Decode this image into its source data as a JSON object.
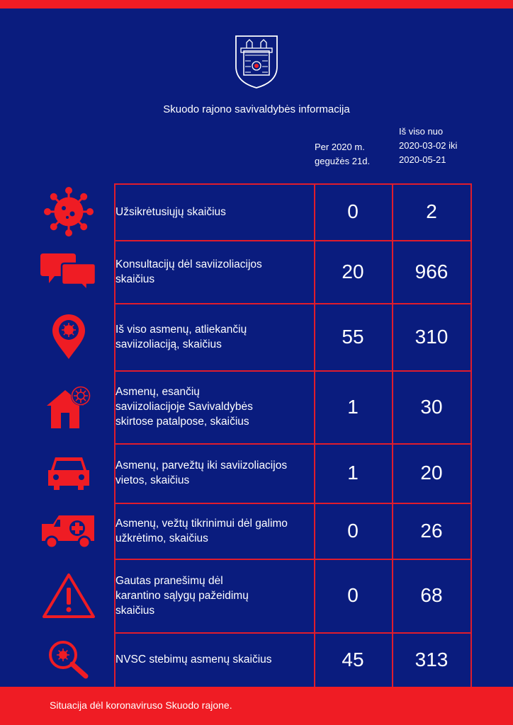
{
  "header": {
    "title": "Skuodo rajono savivaldybės informacija",
    "col1": [
      "Per 2020 m.",
      "gegužės 21d."
    ],
    "col2": [
      "Iš viso nuo",
      "2020-03-02 iki",
      "2020-05-21"
    ]
  },
  "rows": [
    {
      "icon": "virus-icon",
      "lines": [
        "Užsikrėtusiųjų skaičius"
      ],
      "v1": "0",
      "v2": "2"
    },
    {
      "icon": "chat-bubbles-icon",
      "lines": [
        "Konsultacijų dėl saviizoliacijos",
        "skaičius"
      ],
      "v1": "20",
      "v2": "966"
    },
    {
      "icon": "location-pin-virus-icon",
      "lines": [
        "Iš viso asmenų, atliekančių",
        "saviizoliaciją, skaičius"
      ],
      "v1": "55",
      "v2": "310"
    },
    {
      "icon": "house-virus-icon",
      "lines": [
        "Asmenų, esančių",
        "saviizoliacijoje Savivaldybės",
        "skirtose patalpose, skaičius"
      ],
      "v1": "1",
      "v2": "30"
    },
    {
      "icon": "car-icon",
      "lines": [
        "Asmenų, parvežtų iki saviizoliacijos",
        "vietos, skaičius"
      ],
      "v1": "1",
      "v2": "20"
    },
    {
      "icon": "ambulance-icon",
      "lines": [
        "Asmenų, vežtų tikrinimui dėl galimo",
        "užkrėtimo, skaičius"
      ],
      "v1": "0",
      "v2": "26"
    },
    {
      "icon": "warning-icon",
      "lines": [
        "Gautas pranešimų dėl",
        "karantino sąlygų pažeidimų",
        "skaičius"
      ],
      "v1": "0",
      "v2": "68"
    },
    {
      "icon": "magnifier-virus-icon",
      "lines": [
        "NVSC stebimų asmenų skaičius"
      ],
      "v1": "45",
      "v2": "313"
    }
  ],
  "footer": "Situacija dėl koronaviruso Skuodo rajone.",
  "colors": {
    "background": "#0a1c7e",
    "accent": "#ef1c24",
    "text": "#ffffff"
  }
}
